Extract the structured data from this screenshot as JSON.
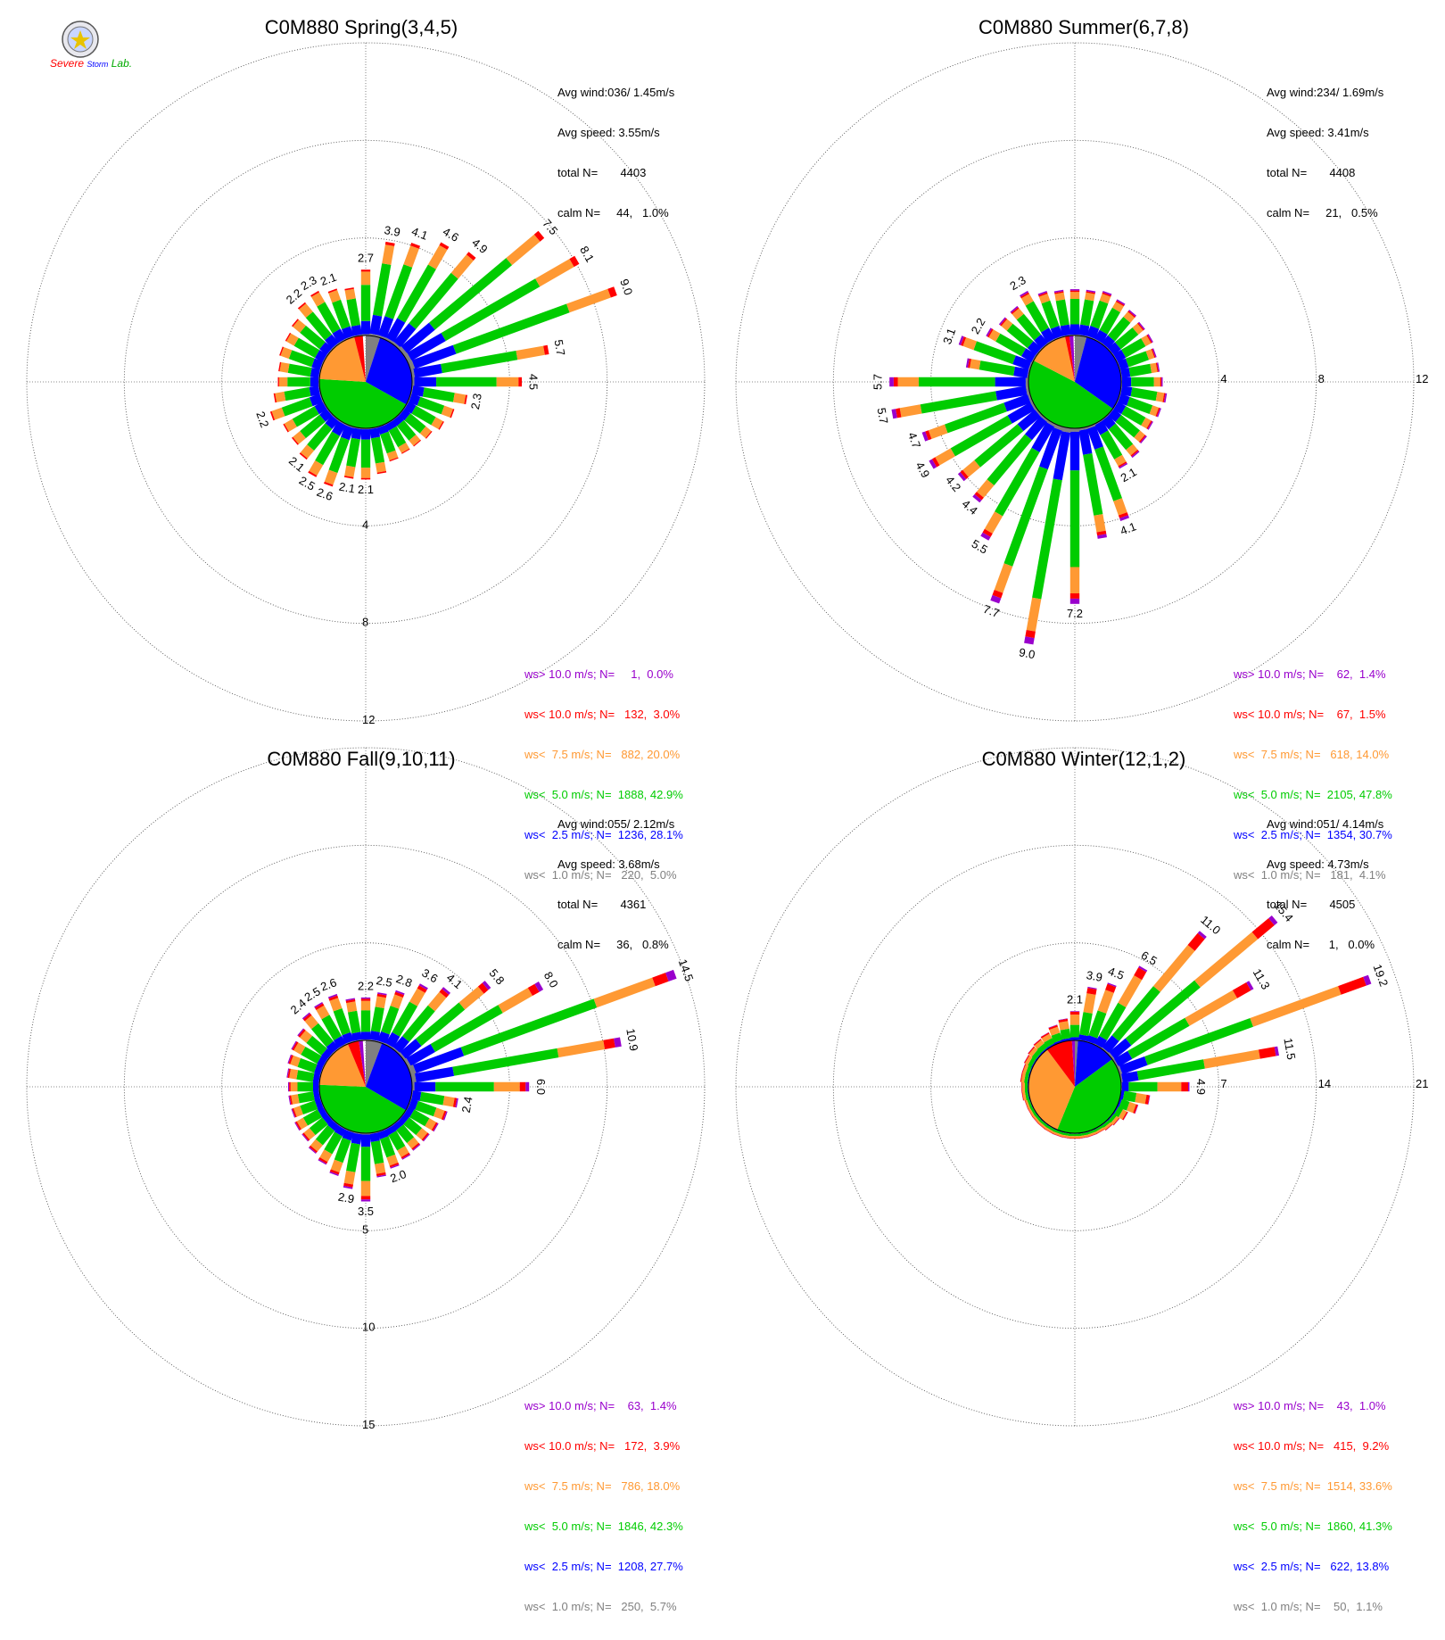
{
  "colors": {
    "purple": "#9900cc",
    "red": "#ff0000",
    "orange": "#ff9933",
    "green": "#00cc00",
    "blue": "#0000ff",
    "gray": "#808080"
  },
  "logo": {
    "line1": "Severe",
    "line2": "Storm",
    "line3": "Lab.",
    "icon": "university-seal-icon"
  },
  "chart_data": [
    {
      "type": "wind-rose",
      "title": "C0M880 Spring(3,4,5)",
      "max": 12,
      "rings": [
        4,
        8,
        12
      ],
      "ring_label_pos": "south",
      "stats": {
        "avg_wind": "Avg wind:036/ 1.45m/s",
        "avg_speed": "Avg speed: 3.55m/s",
        "total": "total N=       4403",
        "calm": "calm N=     44,   1.0%"
      },
      "legend": [
        {
          "text": "ws> 10.0 m/s; N=     1,  0.0%",
          "color": "purple"
        },
        {
          "text": "ws< 10.0 m/s; N=   132,  3.0%",
          "color": "red"
        },
        {
          "text": "ws<  7.5 m/s; N=   882, 20.0%",
          "color": "orange"
        },
        {
          "text": "ws<  5.0 m/s; N=  1888, 42.9%",
          "color": "green"
        },
        {
          "text": "ws<  2.5 m/s; N=  1236, 28.1%",
          "color": "blue"
        },
        {
          "text": "ws<  1.0 m/s; N=   220,  5.0%",
          "color": "gray"
        }
      ],
      "pie": [
        {
          "color": "gray",
          "pct": 5.0
        },
        {
          "color": "blue",
          "pct": 28.1
        },
        {
          "color": "green",
          "pct": 42.9
        },
        {
          "color": "orange",
          "pct": 20.0
        },
        {
          "color": "red",
          "pct": 3.0
        },
        {
          "color": "purple",
          "pct": 0.0
        }
      ],
      "bars": [
        {
          "dir": 0,
          "total": 2.7,
          "label": "2.7"
        },
        {
          "dir": 10,
          "total": 3.9,
          "label": "3.9"
        },
        {
          "dir": 20,
          "total": 4.1,
          "label": "4.1"
        },
        {
          "dir": 30,
          "total": 4.6,
          "label": "4.6"
        },
        {
          "dir": 40,
          "total": 4.9,
          "label": "4.9"
        },
        {
          "dir": 50,
          "total": 7.5,
          "label": "7.5"
        },
        {
          "dir": 60,
          "total": 8.1,
          "label": "8.1"
        },
        {
          "dir": 70,
          "total": 9.0,
          "label": "9.0"
        },
        {
          "dir": 80,
          "total": 5.7,
          "label": "5.7"
        },
        {
          "dir": 90,
          "total": 4.5,
          "label": "4.5"
        },
        {
          "dir": 100,
          "total": 2.3,
          "label": "2.3"
        },
        {
          "dir": 110,
          "total": 1.9
        },
        {
          "dir": 120,
          "total": 1.7
        },
        {
          "dir": 130,
          "total": 1.5
        },
        {
          "dir": 140,
          "total": 1.4
        },
        {
          "dir": 150,
          "total": 1.4
        },
        {
          "dir": 160,
          "total": 1.5
        },
        {
          "dir": 170,
          "total": 1.9
        },
        {
          "dir": 180,
          "total": 2.1,
          "label": "2.1"
        },
        {
          "dir": 190,
          "total": 2.1,
          "label": "2.1"
        },
        {
          "dir": 200,
          "total": 2.6,
          "label": "2.6"
        },
        {
          "dir": 210,
          "total": 2.5,
          "label": "2.5"
        },
        {
          "dir": 220,
          "total": 2.1,
          "label": "2.1"
        },
        {
          "dir": 230,
          "total": 1.9
        },
        {
          "dir": 240,
          "total": 1.9
        },
        {
          "dir": 250,
          "total": 2.2,
          "label": "2.2"
        },
        {
          "dir": 260,
          "total": 1.9
        },
        {
          "dir": 270,
          "total": 1.7
        },
        {
          "dir": 280,
          "total": 1.7
        },
        {
          "dir": 290,
          "total": 1.8
        },
        {
          "dir": 300,
          "total": 1.8
        },
        {
          "dir": 310,
          "total": 1.9
        },
        {
          "dir": 320,
          "total": 2.2,
          "label": "2.2"
        },
        {
          "dir": 330,
          "total": 2.3,
          "label": "2.3"
        },
        {
          "dir": 340,
          "total": 2.1,
          "label": "2.1"
        },
        {
          "dir": 350,
          "total": 2.0
        }
      ]
    },
    {
      "type": "wind-rose",
      "title": "C0M880 Summer(6,7,8)",
      "max": 12,
      "rings": [
        4,
        8,
        12
      ],
      "ring_label_pos": "east",
      "stats": {
        "avg_wind": "Avg wind:234/ 1.69m/s",
        "avg_speed": "Avg speed: 3.41m/s",
        "total": "total N=       4408",
        "calm": "calm N=     21,   0.5%"
      },
      "legend": [
        {
          "text": "ws> 10.0 m/s; N=    62,  1.4%",
          "color": "purple"
        },
        {
          "text": "ws< 10.0 m/s; N=    67,  1.5%",
          "color": "red"
        },
        {
          "text": "ws<  7.5 m/s; N=   618, 14.0%",
          "color": "orange"
        },
        {
          "text": "ws<  5.0 m/s; N=  2105, 47.8%",
          "color": "green"
        },
        {
          "text": "ws<  2.5 m/s; N=  1354, 30.7%",
          "color": "blue"
        },
        {
          "text": "ws<  1.0 m/s; N=   181,  4.1%",
          "color": "gray"
        }
      ],
      "pie": [
        {
          "color": "gray",
          "pct": 4.1
        },
        {
          "color": "blue",
          "pct": 30.7
        },
        {
          "color": "green",
          "pct": 47.8
        },
        {
          "color": "orange",
          "pct": 14.0
        },
        {
          "color": "red",
          "pct": 1.5
        },
        {
          "color": "purple",
          "pct": 1.4
        }
      ],
      "bars": [
        {
          "dir": 0,
          "total": 1.9
        },
        {
          "dir": 10,
          "total": 1.9
        },
        {
          "dir": 20,
          "total": 2.0
        },
        {
          "dir": 30,
          "total": 1.9
        },
        {
          "dir": 40,
          "total": 1.8
        },
        {
          "dir": 50,
          "total": 1.7
        },
        {
          "dir": 60,
          "total": 1.7
        },
        {
          "dir": 70,
          "total": 1.6
        },
        {
          "dir": 80,
          "total": 1.6
        },
        {
          "dir": 90,
          "total": 1.7
        },
        {
          "dir": 100,
          "total": 1.9
        },
        {
          "dir": 110,
          "total": 1.8
        },
        {
          "dir": 120,
          "total": 1.7
        },
        {
          "dir": 130,
          "total": 1.8
        },
        {
          "dir": 140,
          "total": 2.0
        },
        {
          "dir": 150,
          "total": 2.1,
          "label": "2.1"
        },
        {
          "dir": 160,
          "total": 4.1,
          "label": "4.1"
        },
        {
          "dir": 170,
          "total": 4.6
        },
        {
          "dir": 180,
          "total": 7.2,
          "label": "7.2"
        },
        {
          "dir": 190,
          "total": 9.0,
          "label": "9.0"
        },
        {
          "dir": 200,
          "total": 7.7,
          "label": "7.7"
        },
        {
          "dir": 210,
          "total": 5.5,
          "label": "5.5"
        },
        {
          "dir": 220,
          "total": 4.4,
          "label": "4.4"
        },
        {
          "dir": 230,
          "total": 4.2,
          "label": "4.2"
        },
        {
          "dir": 240,
          "total": 4.9,
          "label": "4.9"
        },
        {
          "dir": 250,
          "total": 4.7,
          "label": "4.7"
        },
        {
          "dir": 260,
          "total": 5.7,
          "label": "5.7"
        },
        {
          "dir": 270,
          "total": 5.7,
          "label": "5.7"
        },
        {
          "dir": 280,
          "total": 2.6
        },
        {
          "dir": 290,
          "total": 3.1,
          "label": "3.1"
        },
        {
          "dir": 300,
          "total": 2.2,
          "label": "2.2"
        },
        {
          "dir": 310,
          "total": 2.0
        },
        {
          "dir": 320,
          "total": 2.0
        },
        {
          "dir": 330,
          "total": 2.3,
          "label": "2.3"
        },
        {
          "dir": 340,
          "total": 2.0
        },
        {
          "dir": 350,
          "total": 1.9
        }
      ]
    },
    {
      "type": "wind-rose",
      "title": "C0M880 Fall(9,10,11)",
      "max": 15,
      "rings": [
        5,
        10,
        15
      ],
      "ring_label_pos": "south",
      "stats": {
        "avg_wind": "Avg wind:055/ 2.12m/s",
        "avg_speed": "Avg speed: 3.68m/s",
        "total": "total N=       4361",
        "calm": "calm N=     36,   0.8%"
      },
      "legend": [
        {
          "text": "ws> 10.0 m/s; N=    63,  1.4%",
          "color": "purple"
        },
        {
          "text": "ws< 10.0 m/s; N=   172,  3.9%",
          "color": "red"
        },
        {
          "text": "ws<  7.5 m/s; N=   786, 18.0%",
          "color": "orange"
        },
        {
          "text": "ws<  5.0 m/s; N=  1846, 42.3%",
          "color": "green"
        },
        {
          "text": "ws<  2.5 m/s; N=  1208, 27.7%",
          "color": "blue"
        },
        {
          "text": "ws<  1.0 m/s; N=   250,  5.7%",
          "color": "gray"
        }
      ],
      "pie": [
        {
          "color": "gray",
          "pct": 5.7
        },
        {
          "color": "blue",
          "pct": 27.7
        },
        {
          "color": "green",
          "pct": 42.3
        },
        {
          "color": "orange",
          "pct": 18.0
        },
        {
          "color": "red",
          "pct": 3.9
        },
        {
          "color": "purple",
          "pct": 1.4
        }
      ],
      "bars": [
        {
          "dir": 0,
          "total": 2.2,
          "label": "2.2"
        },
        {
          "dir": 10,
          "total": 2.5,
          "label": "2.5"
        },
        {
          "dir": 20,
          "total": 2.8,
          "label": "2.8"
        },
        {
          "dir": 30,
          "total": 3.6,
          "label": "3.6"
        },
        {
          "dir": 40,
          "total": 4.1,
          "label": "4.1"
        },
        {
          "dir": 50,
          "total": 5.8,
          "label": "5.8"
        },
        {
          "dir": 60,
          "total": 8.0,
          "label": "8.0"
        },
        {
          "dir": 70,
          "total": 14.5,
          "label": "14.5"
        },
        {
          "dir": 80,
          "total": 10.9,
          "label": "10.9"
        },
        {
          "dir": 90,
          "total": 6.0,
          "label": "6.0"
        },
        {
          "dir": 100,
          "total": 2.4,
          "label": "2.4"
        },
        {
          "dir": 110,
          "total": 2.0
        },
        {
          "dir": 120,
          "total": 1.8
        },
        {
          "dir": 130,
          "total": 1.7
        },
        {
          "dir": 140,
          "total": 1.7
        },
        {
          "dir": 150,
          "total": 1.8
        },
        {
          "dir": 160,
          "total": 2.0,
          "label": "2.0"
        },
        {
          "dir": 170,
          "total": 2.3
        },
        {
          "dir": 180,
          "total": 3.5,
          "label": "3.5"
        },
        {
          "dir": 190,
          "total": 2.9,
          "label": "2.9"
        },
        {
          "dir": 200,
          "total": 2.4
        },
        {
          "dir": 210,
          "total": 2.1
        },
        {
          "dir": 220,
          "total": 1.9
        },
        {
          "dir": 230,
          "total": 1.7
        },
        {
          "dir": 240,
          "total": 1.7
        },
        {
          "dir": 250,
          "total": 1.6
        },
        {
          "dir": 260,
          "total": 1.6
        },
        {
          "dir": 270,
          "total": 1.6
        },
        {
          "dir": 280,
          "total": 1.7
        },
        {
          "dir": 290,
          "total": 1.8
        },
        {
          "dir": 300,
          "total": 1.9
        },
        {
          "dir": 310,
          "total": 2.0
        },
        {
          "dir": 320,
          "total": 2.4,
          "label": "2.4"
        },
        {
          "dir": 330,
          "total": 2.5,
          "label": "2.5"
        },
        {
          "dir": 340,
          "total": 2.6,
          "label": "2.6"
        },
        {
          "dir": 350,
          "total": 2.2
        }
      ]
    },
    {
      "type": "wind-rose",
      "title": "C0M880 Winter(12,1,2)",
      "max": 21,
      "rings": [
        7,
        14,
        21
      ],
      "ring_label_pos": "east",
      "stats": {
        "avg_wind": "Avg wind:051/ 4.14m/s",
        "avg_speed": "Avg speed: 4.73m/s",
        "total": "total N=       4505",
        "calm": "calm N=      1,   0.0%"
      },
      "legend": [
        {
          "text": "ws> 10.0 m/s; N=    43,  1.0%",
          "color": "purple"
        },
        {
          "text": "ws< 10.0 m/s; N=   415,  9.2%",
          "color": "red"
        },
        {
          "text": "ws<  7.5 m/s; N=  1514, 33.6%",
          "color": "orange"
        },
        {
          "text": "ws<  5.0 m/s; N=  1860, 41.3%",
          "color": "green"
        },
        {
          "text": "ws<  2.5 m/s; N=   622, 13.8%",
          "color": "blue"
        },
        {
          "text": "ws<  1.0 m/s; N=    50,  1.1%",
          "color": "gray"
        }
      ],
      "pie": [
        {
          "color": "gray",
          "pct": 1.1
        },
        {
          "color": "blue",
          "pct": 13.8
        },
        {
          "color": "green",
          "pct": 41.3
        },
        {
          "color": "orange",
          "pct": 33.6
        },
        {
          "color": "red",
          "pct": 9.2
        },
        {
          "color": "purple",
          "pct": 1.0
        }
      ],
      "bars": [
        {
          "dir": 0,
          "total": 2.1,
          "label": "2.1"
        },
        {
          "dir": 10,
          "total": 3.9,
          "label": "3.9"
        },
        {
          "dir": 20,
          "total": 4.5,
          "label": "4.5"
        },
        {
          "dir": 30,
          "total": 6.5,
          "label": "6.5"
        },
        {
          "dir": 40,
          "total": 11.0,
          "label": "11.0"
        },
        {
          "dir": 50,
          "total": 15.4,
          "label": "15.4"
        },
        {
          "dir": 60,
          "total": 11.3,
          "label": "11.3"
        },
        {
          "dir": 70,
          "total": 19.2,
          "label": "19.2"
        },
        {
          "dir": 80,
          "total": 11.5,
          "label": "11.5"
        },
        {
          "dir": 90,
          "total": 4.9,
          "label": "4.9"
        },
        {
          "dir": 100,
          "total": 2.1
        },
        {
          "dir": 110,
          "total": 1.4
        },
        {
          "dir": 120,
          "total": 0.9
        },
        {
          "dir": 130,
          "total": 0.6
        },
        {
          "dir": 140,
          "total": 0.5
        },
        {
          "dir": 150,
          "total": 0.4
        },
        {
          "dir": 160,
          "total": 0.4
        },
        {
          "dir": 170,
          "total": 0.4
        },
        {
          "dir": 180,
          "total": 0.4
        },
        {
          "dir": 190,
          "total": 0.4
        },
        {
          "dir": 200,
          "total": 0.4
        },
        {
          "dir": 210,
          "total": 0.4
        },
        {
          "dir": 220,
          "total": 0.4
        },
        {
          "dir": 230,
          "total": 0.4
        },
        {
          "dir": 240,
          "total": 0.4
        },
        {
          "dir": 250,
          "total": 0.4
        },
        {
          "dir": 260,
          "total": 0.5
        },
        {
          "dir": 270,
          "total": 0.5
        },
        {
          "dir": 280,
          "total": 0.6
        },
        {
          "dir": 290,
          "total": 0.6
        },
        {
          "dir": 300,
          "total": 0.7
        },
        {
          "dir": 310,
          "total": 0.8
        },
        {
          "dir": 320,
          "total": 0.9
        },
        {
          "dir": 330,
          "total": 1.0
        },
        {
          "dir": 340,
          "total": 1.3
        },
        {
          "dir": 350,
          "total": 1.6
        }
      ]
    }
  ]
}
